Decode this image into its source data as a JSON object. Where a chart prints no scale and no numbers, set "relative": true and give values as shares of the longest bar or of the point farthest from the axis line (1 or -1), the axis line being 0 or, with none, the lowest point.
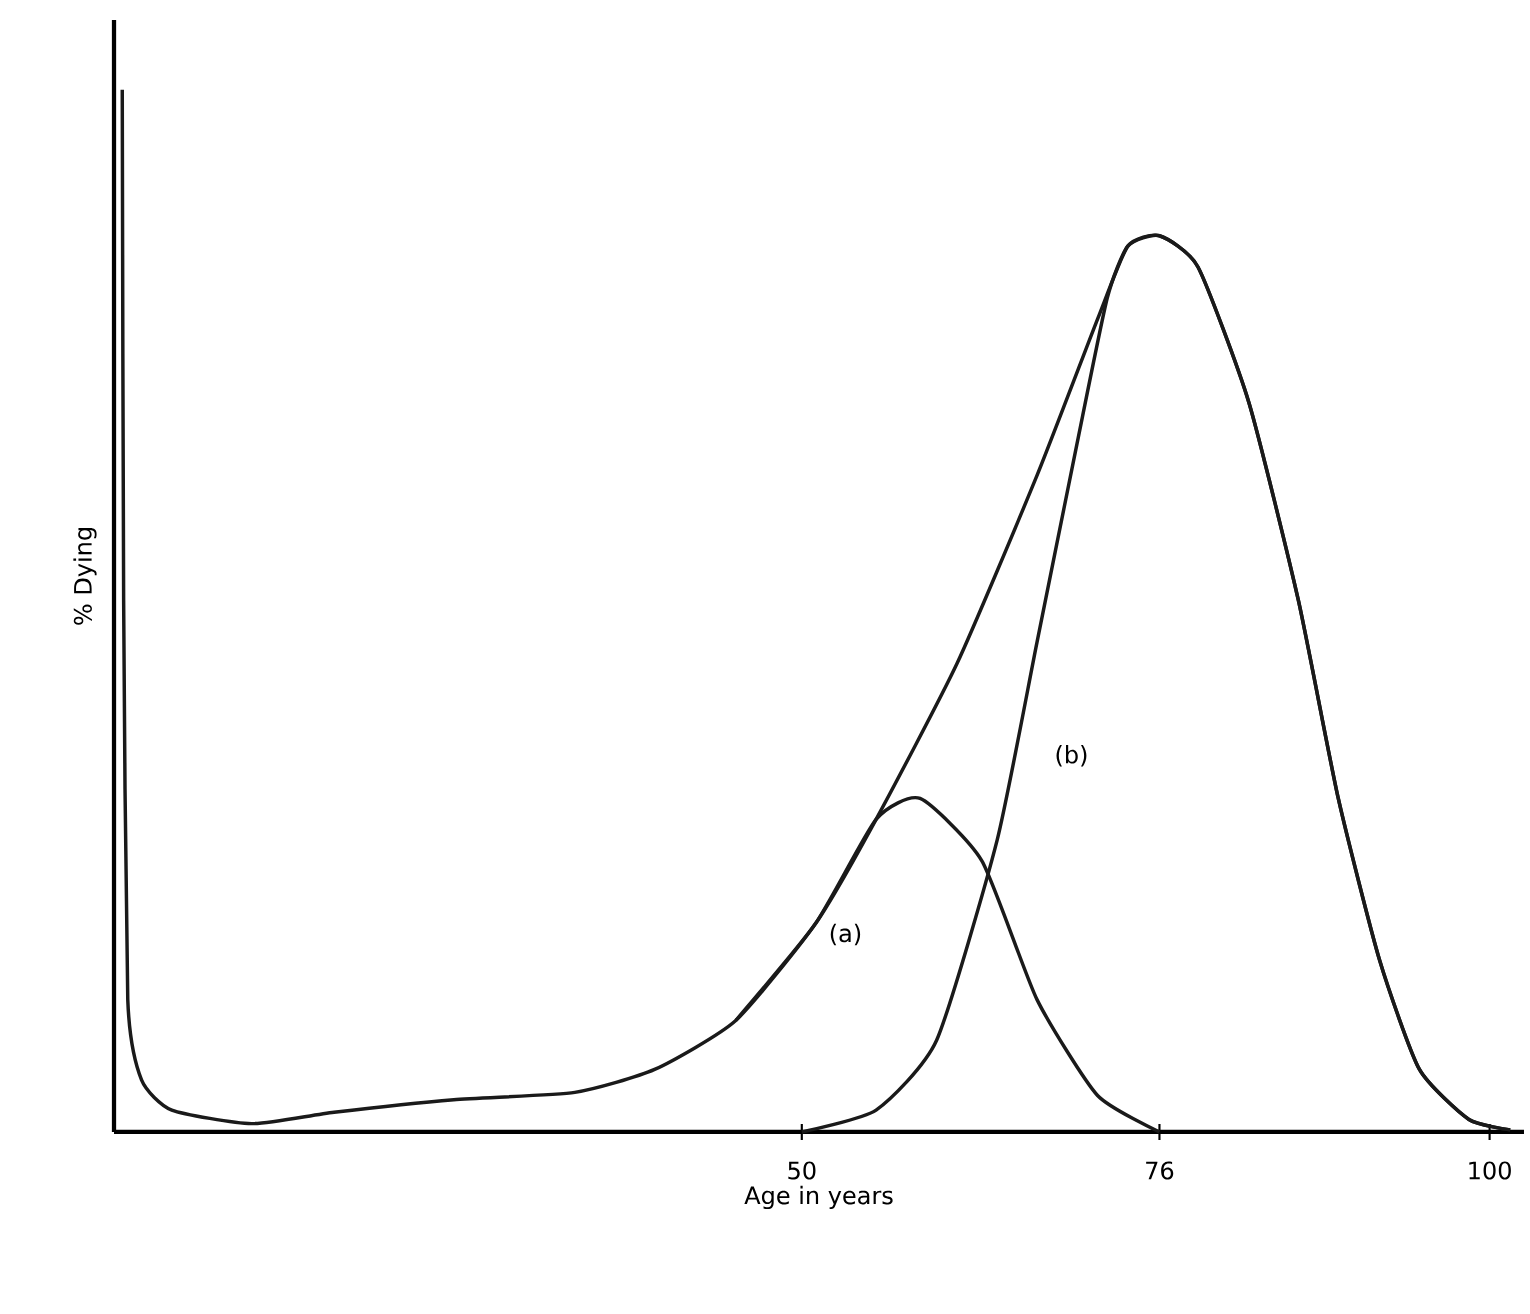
{
  "chart_data": {
    "type": "line",
    "relative": true,
    "xlabel": "Age in years",
    "ylabel": "% Dying",
    "xlim": [
      0,
      102.5
    ],
    "xticks": [
      50,
      76,
      100
    ],
    "tick_labels": "x",
    "grid": false,
    "marker": "none",
    "line_style": "solid",
    "series": [
      {
        "color": "#1a1a1a",
        "x": [
          0.6,
          0.7,
          1.0,
          2.0,
          4.2,
          10,
          16,
          24.7,
          33.5,
          39.3,
          45.2,
          51,
          55.4,
          61.3,
          67.1,
          71.5,
          73.7,
          76,
          78.8,
          82.5,
          86.1,
          89,
          92,
          94.9,
          98.5,
          101.5
        ],
        "values": [
          1.0,
          0.51,
          0.127,
          0.05,
          0.021,
          0.008,
          0.019,
          0.031,
          0.038,
          0.06,
          0.107,
          0.2,
          0.3,
          0.45,
          0.63,
          0.78,
          0.85,
          0.86,
          0.83,
          0.7,
          0.51,
          0.32,
          0.165,
          0.06,
          0.012,
          0.002
        ]
      },
      {
        "name": "(a)",
        "color": "#1a1a1a",
        "x": [
          45.2,
          51,
          55.4,
          58.6,
          63.1,
          67.1,
          71.5,
          76
        ],
        "values": [
          0.107,
          0.2,
          0.3,
          0.32,
          0.26,
          0.127,
          0.035,
          0
        ]
      },
      {
        "name": "(b)",
        "color": "#1a1a1a",
        "x": [
          50,
          55.4,
          59.8,
          64.2,
          67.1,
          70,
          72.2,
          73.7,
          76,
          78.8,
          82.5,
          86.1,
          89,
          92,
          94.9,
          98.5,
          101.5
        ],
        "values": [
          0,
          0.021,
          0.088,
          0.28,
          0.47,
          0.66,
          0.8,
          0.85,
          0.86,
          0.83,
          0.7,
          0.51,
          0.32,
          0.165,
          0.06,
          0.012,
          0.002
        ]
      }
    ]
  }
}
